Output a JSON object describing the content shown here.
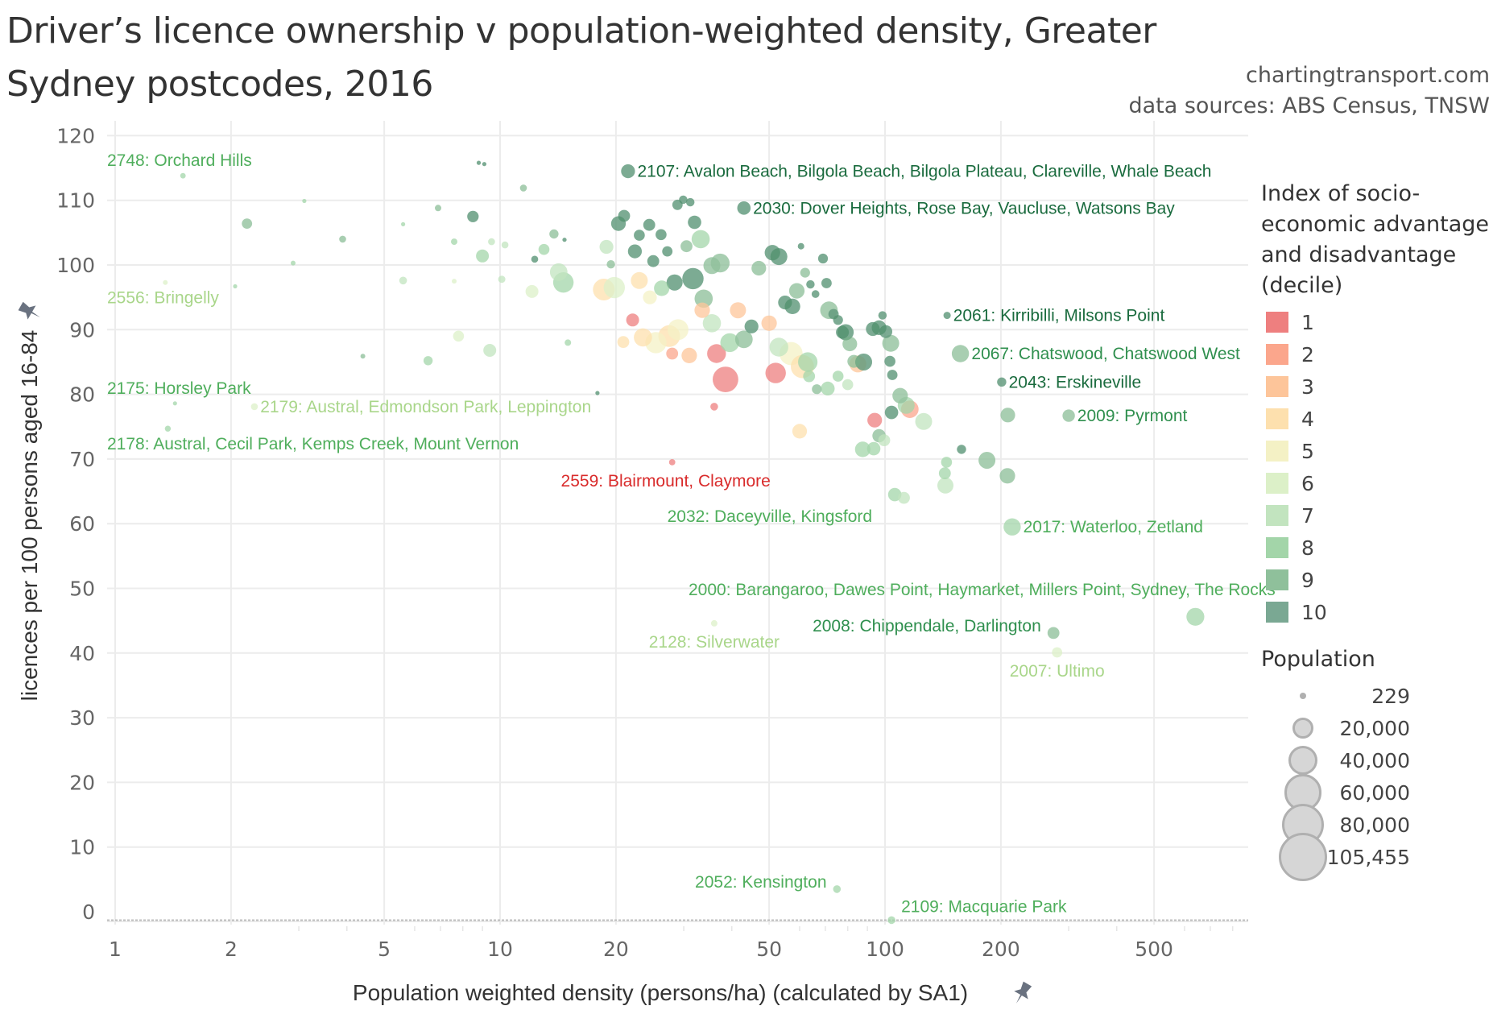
{
  "title": "Driver’s licence ownership v population-weighted density, Greater Sydney postcodes, 2016",
  "credits": [
    "chartingtransport.com",
    "data sources: ABS Census, TNSW"
  ],
  "pin_icon": "pin-icon",
  "legend_color": {
    "title": "Index of socio-economic advantage and disadvantage (decile)",
    "items": [
      {
        "label": "1",
        "color": "#ee7f7f"
      },
      {
        "label": "2",
        "color": "#fba68c"
      },
      {
        "label": "3",
        "color": "#fdc59a"
      },
      {
        "label": "4",
        "color": "#fde0ae"
      },
      {
        "label": "5",
        "color": "#f4f1c5"
      },
      {
        "label": "6",
        "color": "#dcf0c8"
      },
      {
        "label": "7",
        "color": "#c2e4bf"
      },
      {
        "label": "8",
        "color": "#a3d5a9"
      },
      {
        "label": "9",
        "color": "#8fc09b"
      },
      {
        "label": "10",
        "color": "#7aa893"
      }
    ]
  },
  "legend_size": {
    "title": "Population",
    "items": [
      {
        "label": "229",
        "value": 229
      },
      {
        "label": "20,000",
        "value": 20000
      },
      {
        "label": "40,000",
        "value": 40000
      },
      {
        "label": "60,000",
        "value": 60000
      },
      {
        "label": "80,000",
        "value": 80000
      },
      {
        "label": "105,455",
        "value": 105455
      }
    ]
  },
  "chart_data": {
    "type": "scatter",
    "title": "Driver’s licence ownership v population-weighted density, Greater Sydney postcodes, 2016",
    "xlabel": "Population weighted density (persons/ha) (calculated by SA1)",
    "ylabel": "licences per 100 persons aged 16-84",
    "xscale": "log",
    "xlim": [
      0.9,
      850
    ],
    "ylim": [
      -1.5,
      122
    ],
    "xticks": [
      1,
      2,
      5,
      10,
      20,
      50,
      100,
      200,
      500
    ],
    "xtick_labels": [
      "1",
      "2",
      "5",
      "10",
      "20",
      "50",
      "100",
      "200",
      "500"
    ],
    "yticks": [
      0,
      10,
      20,
      30,
      40,
      50,
      60,
      70,
      80,
      90,
      100,
      110,
      120
    ],
    "ytick_labels": [
      "0",
      "10",
      "20",
      "30",
      "40",
      "50",
      "60",
      "70",
      "80",
      "90",
      "100",
      "110",
      "120"
    ],
    "grid": true,
    "reference_line_y": -1.3,
    "color_field": "IRSAD decile",
    "size_field": "Population",
    "legend_position": "right",
    "annotated_points": [
      {
        "label": "2748: Orchard Hills",
        "x": 1.5,
        "y": 113.8,
        "decile": 8,
        "pop": 2500,
        "label_side": "above-left"
      },
      {
        "label": "2556: Bringelly",
        "x": 1.35,
        "y": 97.3,
        "decile": 6,
        "pop": 2000,
        "label_side": "below-left"
      },
      {
        "label": "2175: Horsley Park",
        "x": 1.43,
        "y": 78.6,
        "decile": 8,
        "pop": 900,
        "label_side": "above-left"
      },
      {
        "label": "2179: Austral, Edmondson Park, Leppington",
        "x": 2.3,
        "y": 78.1,
        "decile": 6,
        "pop": 4000,
        "label_side": "right"
      },
      {
        "label": "2178: Austral, Cecil Park, Kemps Creek, Mount Vernon",
        "x": 1.37,
        "y": 74.7,
        "decile": 8,
        "pop": 3000,
        "label_side": "below-left"
      },
      {
        "label": "2107: Avalon Beach, Bilgola Beach, Bilgola Plateau, Clareville, Whale Beach",
        "x": 21.5,
        "y": 114.5,
        "decile": 10,
        "pop": 16000,
        "label_side": "right"
      },
      {
        "label": "2030: Dover Heights, Rose Bay, Vaucluse, Watsons Bay",
        "x": 43,
        "y": 108.8,
        "decile": 10,
        "pop": 15000,
        "label_side": "right"
      },
      {
        "label": "2061: Kirribilli, Milsons Point",
        "x": 145,
        "y": 92.2,
        "decile": 10,
        "pop": 4500,
        "label_side": "right"
      },
      {
        "label": "2067: Chatswood, Chatswood West",
        "x": 157,
        "y": 86.3,
        "decile": 9,
        "pop": 25000,
        "label_side": "right"
      },
      {
        "label": "2043: Erskineville",
        "x": 201,
        "y": 81.9,
        "decile": 10,
        "pop": 7000,
        "label_side": "right"
      },
      {
        "label": "2009: Pyrmont",
        "x": 300,
        "y": 76.7,
        "decile": 9,
        "pop": 13000,
        "label_side": "right"
      },
      {
        "label": "2559: Blairmount, Claymore",
        "x": 28,
        "y": 69.5,
        "decile": 1,
        "pop": 3300,
        "label_side": "below-left"
      },
      {
        "label": "2032: Daceyville, Kingsford",
        "x": 106,
        "y": 64.5,
        "decile": 8,
        "pop": 15000,
        "label_side": "below-left"
      },
      {
        "label": "2017: Waterloo, Zetland",
        "x": 214,
        "y": 59.5,
        "decile": 8,
        "pop": 25000,
        "label_side": "right"
      },
      {
        "label": "2000: Barangaroo, Dawes Point, Haymarket, Millers Point, Sydney, The Rocks",
        "x": 640,
        "y": 45.6,
        "decile": 8,
        "pop": 27000,
        "label_side": "above-left"
      },
      {
        "label": "2008: Chippendale, Darlington",
        "x": 274,
        "y": 43.1,
        "decile": 9,
        "pop": 12000,
        "label_side": "left"
      },
      {
        "label": "2128: Silverwater",
        "x": 36,
        "y": 44.6,
        "decile": 6,
        "pop": 3500,
        "label_side": "below"
      },
      {
        "label": "2007: Ultimo",
        "x": 280,
        "y": 40.1,
        "decile": 6,
        "pop": 9000,
        "label_side": "below"
      },
      {
        "label": "2052: Kensington",
        "x": 75,
        "y": 3.5,
        "decile": 8,
        "pop": 5000,
        "label_side": "left"
      },
      {
        "label": "2109: Macquarie Park",
        "x": 104,
        "y": -1.3,
        "decile": 8,
        "pop": 5000,
        "label_side": "above-right"
      }
    ],
    "points": [
      {
        "x": 8.8,
        "y": 115.8,
        "decile": 10,
        "pop": 600
      },
      {
        "x": 9.1,
        "y": 115.6,
        "decile": 10,
        "pop": 700
      },
      {
        "x": 3.1,
        "y": 109.9,
        "decile": 8,
        "pop": 500
      },
      {
        "x": 2.2,
        "y": 106.4,
        "decile": 9,
        "pop": 9000
      },
      {
        "x": 3.9,
        "y": 104.0,
        "decile": 9,
        "pop": 4000
      },
      {
        "x": 5.6,
        "y": 106.3,
        "decile": 8,
        "pop": 800
      },
      {
        "x": 2.9,
        "y": 100.3,
        "decile": 8,
        "pop": 2000
      },
      {
        "x": 2.05,
        "y": 96.7,
        "decile": 8,
        "pop": 900
      },
      {
        "x": 6.9,
        "y": 108.8,
        "decile": 9,
        "pop": 3500
      },
      {
        "x": 8.5,
        "y": 107.5,
        "decile": 10,
        "pop": 11000
      },
      {
        "x": 7.6,
        "y": 103.6,
        "decile": 8,
        "pop": 3500
      },
      {
        "x": 9.0,
        "y": 101.4,
        "decile": 8,
        "pop": 14000
      },
      {
        "x": 9.5,
        "y": 103.6,
        "decile": 7,
        "pop": 4000
      },
      {
        "x": 10.3,
        "y": 103.1,
        "decile": 7,
        "pop": 4000
      },
      {
        "x": 11.5,
        "y": 111.9,
        "decile": 9,
        "pop": 4000
      },
      {
        "x": 12.3,
        "y": 100.9,
        "decile": 10,
        "pop": 4000
      },
      {
        "x": 13.0,
        "y": 102.4,
        "decile": 8,
        "pop": 10000
      },
      {
        "x": 13.8,
        "y": 104.8,
        "decile": 9,
        "pop": 7000
      },
      {
        "x": 14.7,
        "y": 103.9,
        "decile": 10,
        "pop": 1500
      },
      {
        "x": 5.6,
        "y": 97.6,
        "decile": 7,
        "pop": 5000
      },
      {
        "x": 7.6,
        "y": 97.5,
        "decile": 6,
        "pop": 2000
      },
      {
        "x": 10.1,
        "y": 97.8,
        "decile": 7,
        "pop": 4500
      },
      {
        "x": 12.1,
        "y": 95.9,
        "decile": 6,
        "pop": 14000
      },
      {
        "x": 14.2,
        "y": 98.9,
        "decile": 7,
        "pop": 26000
      },
      {
        "x": 14.6,
        "y": 97.3,
        "decile": 8,
        "pop": 35000
      },
      {
        "x": 4.4,
        "y": 85.9,
        "decile": 9,
        "pop": 2000
      },
      {
        "x": 6.5,
        "y": 85.2,
        "decile": 8,
        "pop": 7000
      },
      {
        "x": 7.8,
        "y": 89.0,
        "decile": 6,
        "pop": 10000
      },
      {
        "x": 9.4,
        "y": 86.8,
        "decile": 7,
        "pop": 14000
      },
      {
        "x": 15.0,
        "y": 88.0,
        "decile": 8,
        "pop": 3500
      },
      {
        "x": 17.9,
        "y": 80.2,
        "decile": 10,
        "pop": 1500
      },
      {
        "x": 18.6,
        "y": 96.2,
        "decile": 4,
        "pop": 40000
      },
      {
        "x": 19.8,
        "y": 96.5,
        "decile": 6,
        "pop": 38000
      },
      {
        "x": 18.9,
        "y": 102.8,
        "decile": 7,
        "pop": 16000
      },
      {
        "x": 20.3,
        "y": 106.4,
        "decile": 10,
        "pop": 18000
      },
      {
        "x": 21.0,
        "y": 107.6,
        "decile": 10,
        "pop": 12000
      },
      {
        "x": 19.4,
        "y": 100.1,
        "decile": 9,
        "pop": 6000
      },
      {
        "x": 22.4,
        "y": 102.1,
        "decile": 10,
        "pop": 16000
      },
      {
        "x": 23.0,
        "y": 104.6,
        "decile": 10,
        "pop": 10000
      },
      {
        "x": 24.4,
        "y": 106.2,
        "decile": 10,
        "pop": 12000
      },
      {
        "x": 25.0,
        "y": 100.6,
        "decile": 10,
        "pop": 12000
      },
      {
        "x": 26.2,
        "y": 104.7,
        "decile": 10,
        "pop": 10000
      },
      {
        "x": 27.2,
        "y": 102.1,
        "decile": 10,
        "pop": 9000
      },
      {
        "x": 28.9,
        "y": 109.3,
        "decile": 10,
        "pop": 9000
      },
      {
        "x": 29.9,
        "y": 110.1,
        "decile": 10,
        "pop": 6000
      },
      {
        "x": 31.2,
        "y": 109.7,
        "decile": 10,
        "pop": 6000
      },
      {
        "x": 32.0,
        "y": 106.6,
        "decile": 10,
        "pop": 15000
      },
      {
        "x": 30.5,
        "y": 102.9,
        "decile": 9,
        "pop": 12000
      },
      {
        "x": 33.2,
        "y": 104.0,
        "decile": 8,
        "pop": 28000
      },
      {
        "x": 35.5,
        "y": 99.9,
        "decile": 9,
        "pop": 24000
      },
      {
        "x": 37.3,
        "y": 100.3,
        "decile": 9,
        "pop": 30000
      },
      {
        "x": 31.7,
        "y": 97.9,
        "decile": 10,
        "pop": 38000
      },
      {
        "x": 33.8,
        "y": 94.8,
        "decile": 9,
        "pop": 28000
      },
      {
        "x": 28.4,
        "y": 97.3,
        "decile": 10,
        "pop": 22000
      },
      {
        "x": 26.3,
        "y": 96.4,
        "decile": 8,
        "pop": 20000
      },
      {
        "x": 23.0,
        "y": 97.6,
        "decile": 4,
        "pop": 24000
      },
      {
        "x": 24.5,
        "y": 95.0,
        "decile": 5,
        "pop": 16000
      },
      {
        "x": 22.1,
        "y": 91.5,
        "decile": 1,
        "pop": 14000
      },
      {
        "x": 20.9,
        "y": 88.1,
        "decile": 4,
        "pop": 12000
      },
      {
        "x": 23.5,
        "y": 88.8,
        "decile": 4,
        "pop": 28000
      },
      {
        "x": 25.4,
        "y": 88.0,
        "decile": 5,
        "pop": 38000
      },
      {
        "x": 27.5,
        "y": 89.0,
        "decile": 4,
        "pop": 40000
      },
      {
        "x": 29.0,
        "y": 90.0,
        "decile": 5,
        "pop": 36000
      },
      {
        "x": 28.0,
        "y": 86.3,
        "decile": 2,
        "pop": 12000
      },
      {
        "x": 31.0,
        "y": 86.0,
        "decile": 3,
        "pop": 20000
      },
      {
        "x": 33.5,
        "y": 93.0,
        "decile": 3,
        "pop": 20000
      },
      {
        "x": 35.5,
        "y": 91.0,
        "decile": 7,
        "pop": 28000
      },
      {
        "x": 36.5,
        "y": 86.3,
        "decile": 1,
        "pop": 30000
      },
      {
        "x": 39.5,
        "y": 88.0,
        "decile": 8,
        "pop": 30000
      },
      {
        "x": 38.5,
        "y": 82.3,
        "decile": 1,
        "pop": 55000
      },
      {
        "x": 41.5,
        "y": 93.0,
        "decile": 3,
        "pop": 22000
      },
      {
        "x": 43.0,
        "y": 88.5,
        "decile": 9,
        "pop": 26000
      },
      {
        "x": 45.0,
        "y": 90.5,
        "decile": 10,
        "pop": 16000
      },
      {
        "x": 36.0,
        "y": 78.1,
        "decile": 1,
        "pop": 5000
      },
      {
        "x": 52.0,
        "y": 83.3,
        "decile": 1,
        "pop": 35000
      },
      {
        "x": 50.0,
        "y": 91.0,
        "decile": 3,
        "pop": 20000
      },
      {
        "x": 53.0,
        "y": 87.3,
        "decile": 7,
        "pop": 30000
      },
      {
        "x": 57.0,
        "y": 86.3,
        "decile": 5,
        "pop": 45000
      },
      {
        "x": 61.0,
        "y": 84.3,
        "decile": 4,
        "pop": 45000
      },
      {
        "x": 63.0,
        "y": 85.0,
        "decile": 8,
        "pop": 32000
      },
      {
        "x": 60.0,
        "y": 74.3,
        "decile": 4,
        "pop": 18000
      },
      {
        "x": 47.0,
        "y": 99.5,
        "decile": 9,
        "pop": 18000
      },
      {
        "x": 51.0,
        "y": 101.9,
        "decile": 10,
        "pop": 20000
      },
      {
        "x": 53.0,
        "y": 101.3,
        "decile": 10,
        "pop": 24000
      },
      {
        "x": 55.0,
        "y": 94.2,
        "decile": 10,
        "pop": 16000
      },
      {
        "x": 57.5,
        "y": 93.6,
        "decile": 10,
        "pop": 20000
      },
      {
        "x": 59.0,
        "y": 96.0,
        "decile": 9,
        "pop": 20000
      },
      {
        "x": 60.5,
        "y": 102.9,
        "decile": 10,
        "pop": 3500
      },
      {
        "x": 62.0,
        "y": 98.8,
        "decile": 9,
        "pop": 8000
      },
      {
        "x": 64.0,
        "y": 97.0,
        "decile": 10,
        "pop": 6000
      },
      {
        "x": 66.0,
        "y": 95.5,
        "decile": 10,
        "pop": 5000
      },
      {
        "x": 69.0,
        "y": 101.0,
        "decile": 10,
        "pop": 8000
      },
      {
        "x": 70.5,
        "y": 97.2,
        "decile": 10,
        "pop": 9000
      },
      {
        "x": 71.5,
        "y": 93.0,
        "decile": 9,
        "pop": 26000
      },
      {
        "x": 73.5,
        "y": 92.4,
        "decile": 10,
        "pop": 9000
      },
      {
        "x": 75.5,
        "y": 91.5,
        "decile": 10,
        "pop": 8000
      },
      {
        "x": 77.5,
        "y": 89.6,
        "decile": 10,
        "pop": 14000
      },
      {
        "x": 79.0,
        "y": 89.6,
        "decile": 10,
        "pop": 22000
      },
      {
        "x": 81.0,
        "y": 87.8,
        "decile": 9,
        "pop": 18000
      },
      {
        "x": 83.0,
        "y": 85.1,
        "decile": 9,
        "pop": 14000
      },
      {
        "x": 85.0,
        "y": 84.7,
        "decile": 3,
        "pop": 24000
      },
      {
        "x": 88.0,
        "y": 85.0,
        "decile": 10,
        "pop": 24000
      },
      {
        "x": 93.0,
        "y": 90.1,
        "decile": 10,
        "pop": 16000
      },
      {
        "x": 96.5,
        "y": 90.3,
        "decile": 10,
        "pop": 18000
      },
      {
        "x": 98.5,
        "y": 92.2,
        "decile": 10,
        "pop": 6000
      },
      {
        "x": 100.5,
        "y": 89.7,
        "decile": 10,
        "pop": 14000
      },
      {
        "x": 103.5,
        "y": 87.9,
        "decile": 9,
        "pop": 24000
      },
      {
        "x": 103.0,
        "y": 85.1,
        "decile": 10,
        "pop": 10000
      },
      {
        "x": 104.5,
        "y": 83.0,
        "decile": 10,
        "pop": 9000
      },
      {
        "x": 66.5,
        "y": 80.8,
        "decile": 9,
        "pop": 8000
      },
      {
        "x": 71.0,
        "y": 80.9,
        "decile": 8,
        "pop": 16000
      },
      {
        "x": 75.5,
        "y": 82.8,
        "decile": 8,
        "pop": 10000
      },
      {
        "x": 80.0,
        "y": 81.5,
        "decile": 7,
        "pop": 10000
      },
      {
        "x": 63.5,
        "y": 82.8,
        "decile": 8,
        "pop": 12000
      },
      {
        "x": 109.5,
        "y": 79.8,
        "decile": 9,
        "pop": 20000
      },
      {
        "x": 113.5,
        "y": 78.3,
        "decile": 8,
        "pop": 24000
      },
      {
        "x": 94.0,
        "y": 76.0,
        "decile": 1,
        "pop": 18000
      },
      {
        "x": 104.0,
        "y": 77.2,
        "decile": 10,
        "pop": 15000
      },
      {
        "x": 116.0,
        "y": 77.7,
        "decile": 2,
        "pop": 26000
      },
      {
        "x": 126.0,
        "y": 75.8,
        "decile": 7,
        "pop": 24000
      },
      {
        "x": 96.5,
        "y": 73.6,
        "decile": 9,
        "pop": 15000
      },
      {
        "x": 99.5,
        "y": 72.9,
        "decile": 7,
        "pop": 12000
      },
      {
        "x": 87.5,
        "y": 71.5,
        "decile": 8,
        "pop": 20000
      },
      {
        "x": 93.5,
        "y": 71.6,
        "decile": 8,
        "pop": 15000
      },
      {
        "x": 112.0,
        "y": 64.0,
        "decile": 7,
        "pop": 12000
      },
      {
        "x": 144.5,
        "y": 69.5,
        "decile": 8,
        "pop": 10000
      },
      {
        "x": 143.0,
        "y": 67.8,
        "decile": 8,
        "pop": 12000
      },
      {
        "x": 143.5,
        "y": 65.9,
        "decile": 7,
        "pop": 22000
      },
      {
        "x": 158.0,
        "y": 71.5,
        "decile": 10,
        "pop": 7000
      },
      {
        "x": 184.0,
        "y": 69.8,
        "decile": 9,
        "pop": 24000
      },
      {
        "x": 208.0,
        "y": 67.4,
        "decile": 9,
        "pop": 20000
      },
      {
        "x": 208.5,
        "y": 76.8,
        "decile": 9,
        "pop": 18000
      }
    ]
  }
}
